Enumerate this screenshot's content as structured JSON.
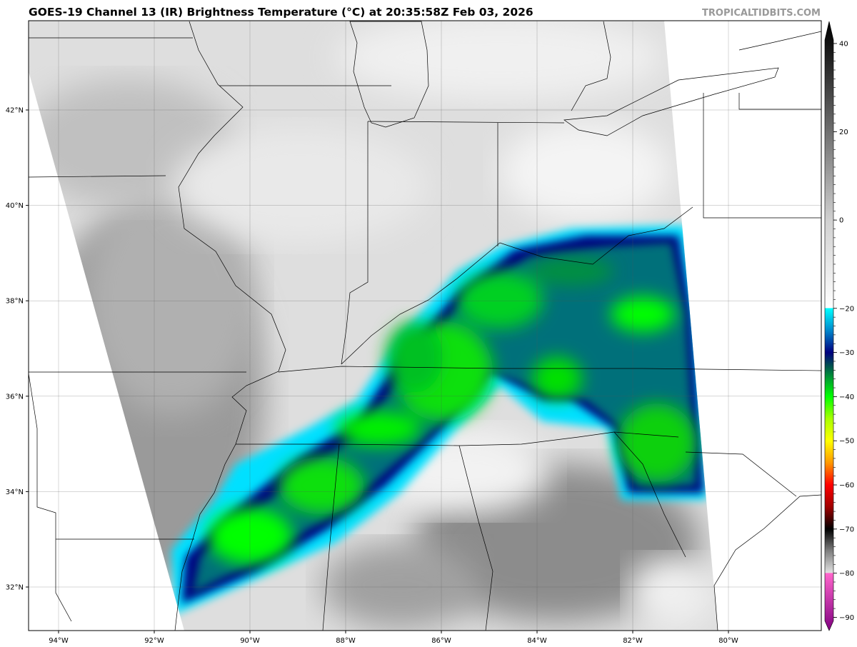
{
  "title": "GOES-19 Channel 13 (IR) Brightness Temperature (°C) at 20:35:58Z Feb 03, 2026",
  "credit": "TROPICALTIDBITS.COM",
  "map": {
    "longitude_ticks": [
      {
        "value": -94,
        "label": "94°W"
      },
      {
        "value": -92,
        "label": "92°W"
      },
      {
        "value": -90,
        "label": "90°W"
      },
      {
        "value": -88,
        "label": "88°W"
      },
      {
        "value": -86,
        "label": "86°W"
      },
      {
        "value": -84,
        "label": "84°W"
      },
      {
        "value": -82,
        "label": "82°W"
      },
      {
        "value": -80,
        "label": "80°W"
      }
    ],
    "latitude_ticks": [
      {
        "value": 42,
        "label": "42°N"
      },
      {
        "value": 40,
        "label": "40°N"
      },
      {
        "value": 38,
        "label": "38°N"
      },
      {
        "value": 36,
        "label": "36°N"
      },
      {
        "value": 34,
        "label": "34°N"
      },
      {
        "value": 32,
        "label": "32°N"
      }
    ],
    "gridlines": true
  },
  "colorbar": {
    "unit": "°C",
    "range": [
      -93,
      45
    ],
    "ticks": [
      {
        "value": 40,
        "label": "40"
      },
      {
        "value": 20,
        "label": "20"
      },
      {
        "value": 0,
        "label": "0"
      },
      {
        "value": -20,
        "label": "−20"
      },
      {
        "value": -30,
        "label": "−30"
      },
      {
        "value": -40,
        "label": "−40"
      },
      {
        "value": -50,
        "label": "−50"
      },
      {
        "value": -60,
        "label": "−60"
      },
      {
        "value": -70,
        "label": "−70"
      },
      {
        "value": -80,
        "label": "−80"
      },
      {
        "value": -90,
        "label": "−90"
      }
    ],
    "stops": [
      {
        "value": 45,
        "color": "#000000"
      },
      {
        "value": 40,
        "color": "#111111"
      },
      {
        "value": 20,
        "color": "#707070"
      },
      {
        "value": 0,
        "color": "#d0d0d0"
      },
      {
        "value": -19.9,
        "color": "#ffffff"
      },
      {
        "value": -20,
        "color": "#00ffff"
      },
      {
        "value": -25,
        "color": "#0088cc"
      },
      {
        "value": -30,
        "color": "#000080"
      },
      {
        "value": -33,
        "color": "#005050"
      },
      {
        "value": -36,
        "color": "#00a030"
      },
      {
        "value": -40,
        "color": "#00ff00"
      },
      {
        "value": -45,
        "color": "#a8ff00"
      },
      {
        "value": -50,
        "color": "#ffff00"
      },
      {
        "value": -55,
        "color": "#ff9900"
      },
      {
        "value": -60,
        "color": "#ff0000"
      },
      {
        "value": -65,
        "color": "#a00000"
      },
      {
        "value": -70,
        "color": "#000000"
      },
      {
        "value": -75,
        "color": "#808080"
      },
      {
        "value": -79.9,
        "color": "#e0e0e0"
      },
      {
        "value": -80,
        "color": "#ff66cc"
      },
      {
        "value": -93,
        "color": "#800080"
      }
    ]
  }
}
